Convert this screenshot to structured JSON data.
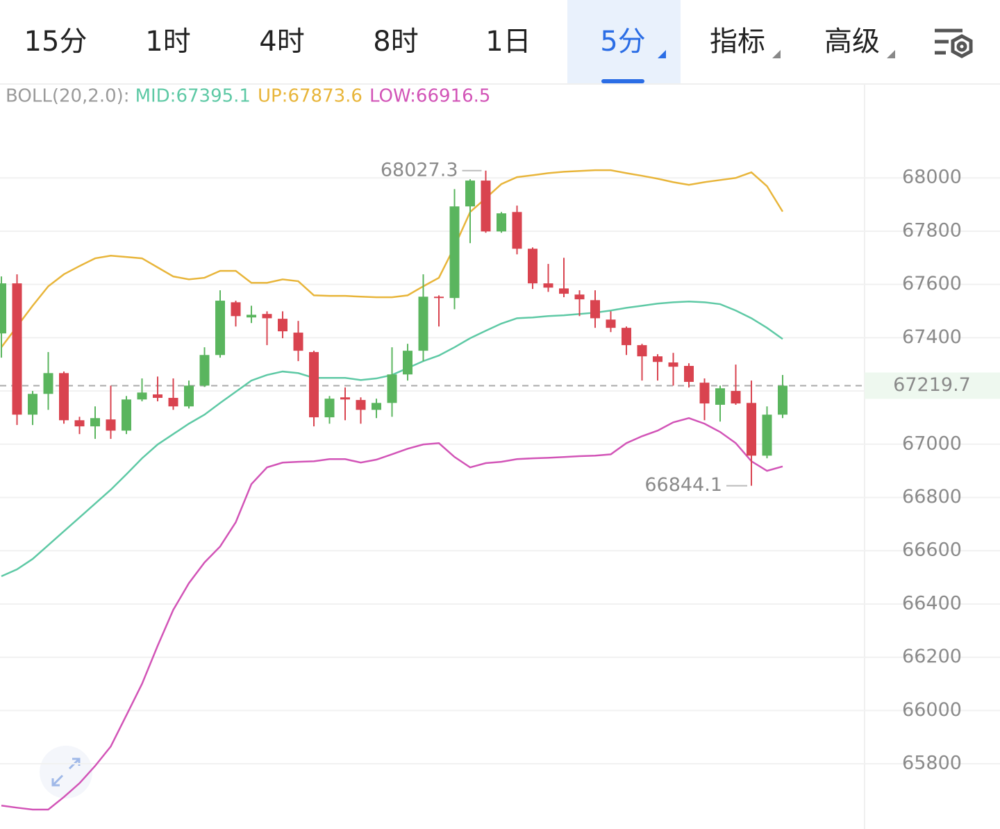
{
  "tabs": [
    "15分",
    "1时",
    "4时",
    "8时",
    "1日",
    "5分",
    "指标",
    "高级"
  ],
  "active_tab": 5,
  "chart_data": {
    "type": "candlestick",
    "indicator": "BOLL(20,2.0):",
    "ylim": [
      65555,
      68350
    ],
    "yticks": [
      65800,
      66000,
      66200,
      66400,
      66600,
      66800,
      67000,
      67200,
      67400,
      67600,
      67800,
      68000
    ],
    "grid": true,
    "up_color": "#5ab55e",
    "down_color": "#d9434f",
    "candles": {
      "open": [
        67416,
        67604,
        67111,
        67189,
        67267,
        67090,
        67067,
        67093,
        67051,
        67168,
        67187,
        67174,
        67142,
        67220,
        67335,
        67533,
        67476,
        67489,
        67471,
        67419,
        67346,
        67101,
        67176,
        67166,
        67129,
        67155,
        67262,
        67351,
        67554,
        67549,
        67893,
        67990,
        67799,
        67872,
        67734,
        67604,
        67585,
        67562,
        67541,
        67468,
        67437,
        67372,
        67330,
        67307,
        67294,
        67231,
        67148,
        67200,
        67155,
        66957,
        67111
      ],
      "high": [
        67630,
        67638,
        67200,
        67346,
        67273,
        67103,
        67142,
        67220,
        67181,
        67247,
        67254,
        67247,
        67239,
        67364,
        67578,
        67539,
        67520,
        67499,
        67499,
        67463,
        67351,
        67181,
        67213,
        67176,
        67171,
        67364,
        67377,
        67638,
        67559,
        67958,
        67995,
        68027.3,
        67872,
        67896,
        67739,
        67677,
        67700,
        67578,
        67578,
        67499,
        67442,
        67377,
        67338,
        67343,
        67304,
        67247,
        67220,
        67299,
        67239,
        67142,
        67260
      ],
      "low": [
        67325,
        67072,
        67072,
        67129,
        67077,
        67038,
        67020,
        67020,
        67038,
        67161,
        67161,
        67129,
        67134,
        67215,
        67325,
        67442,
        67455,
        67372,
        67398,
        67312,
        67067,
        67077,
        67090,
        67077,
        67098,
        67103,
        67239,
        67312,
        67442,
        67507,
        67755,
        67794,
        67794,
        67713,
        67583,
        67572,
        67552,
        67481,
        67437,
        67421,
        67335,
        67239,
        67239,
        67220,
        67213,
        67090,
        67085,
        67148,
        66844.1,
        66947,
        67098
      ],
      "close": [
        67604,
        67111,
        67189,
        67267,
        67090,
        67067,
        67098,
        67051,
        67168,
        67194,
        67174,
        67142,
        67220,
        67335,
        67539,
        67481,
        67486,
        67473,
        67424,
        67351,
        67101,
        67171,
        67168,
        67129,
        67155,
        67262,
        67351,
        67554,
        67549,
        67893,
        67990,
        67799,
        67867,
        67734,
        67604,
        67588,
        67565,
        67544,
        67473,
        67437,
        67372,
        67330,
        67309,
        67291,
        67234,
        67153,
        67210,
        67153,
        66957,
        67111,
        67219.7
      ]
    },
    "bands": [
      {
        "label": "MID:67395.1",
        "color": "#5ec9a5",
        "values": [
          66504,
          66530,
          66569,
          66621,
          66673,
          66725,
          66777,
          66829,
          66887,
          66947,
          66999,
          67038,
          67077,
          67111,
          67155,
          67197,
          67239,
          67260,
          67273,
          67267,
          67249,
          67249,
          67249,
          67241,
          67247,
          67260,
          67286,
          67312,
          67333,
          67364,
          67398,
          67426,
          67453,
          67473,
          67476,
          67481,
          67484,
          67489,
          67494,
          67502,
          67512,
          67520,
          67528,
          67533,
          67536,
          67533,
          67526,
          67502,
          67473,
          67437,
          67395.1
        ]
      },
      {
        "label": "UP:67873.6",
        "color": "#e8b53a",
        "values": [
          67364,
          67442,
          67520,
          67593,
          67638,
          67669,
          67698,
          67708,
          67703,
          67698,
          67664,
          67630,
          67619,
          67625,
          67651,
          67651,
          67606,
          67606,
          67619,
          67612,
          67559,
          67557,
          67557,
          67554,
          67552,
          67552,
          67559,
          67593,
          67625,
          67742,
          67872,
          67924,
          67977,
          68003,
          68010,
          68018,
          68023,
          68026,
          68029,
          68029,
          68018,
          68008,
          67997,
          67984,
          67974,
          67984,
          67992,
          68000,
          68021,
          67969,
          67873.6
        ]
      },
      {
        "label": "LOW:66916.5",
        "color": "#d254b7",
        "values": [
          65643,
          65635,
          65628,
          65628,
          65675,
          65727,
          65792,
          65865,
          65982,
          66100,
          66243,
          66378,
          66478,
          66556,
          66616,
          66707,
          66850,
          66913,
          66931,
          66934,
          66936,
          66944,
          66944,
          66931,
          66942,
          66962,
          66983,
          66999,
          67004,
          66952,
          66913,
          66929,
          66934,
          66944,
          66947,
          66949,
          66952,
          66955,
          66957,
          66962,
          67004,
          67030,
          67051,
          67082,
          67098,
          67077,
          67046,
          67004,
          66936,
          66900,
          66916.5
        ]
      }
    ]
  }
}
